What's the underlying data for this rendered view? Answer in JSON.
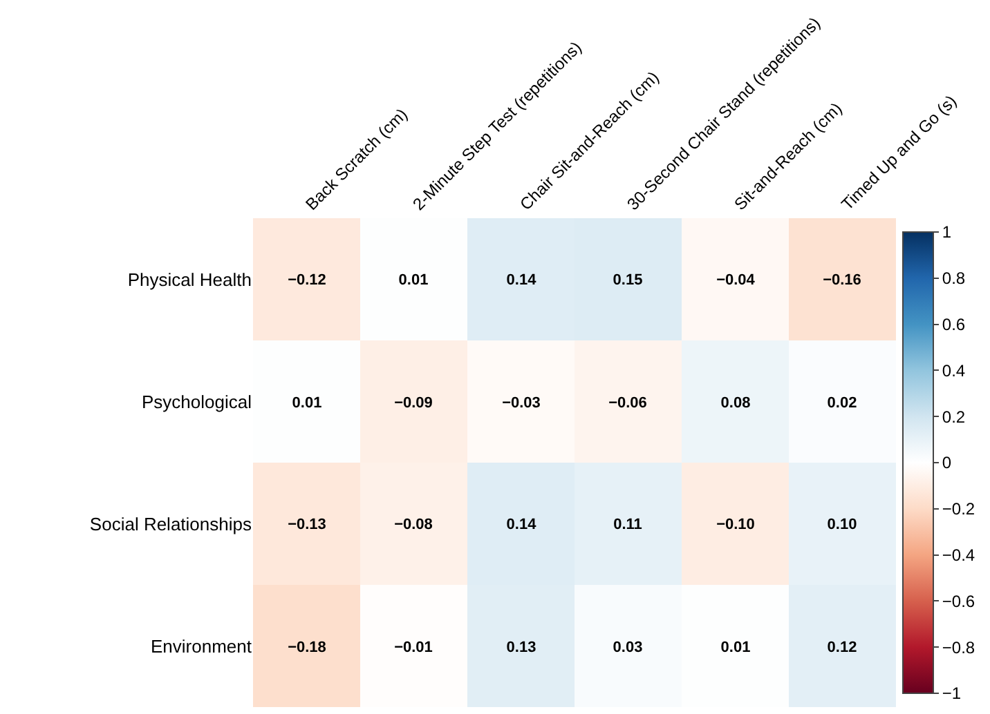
{
  "chart_data": {
    "type": "heatmap",
    "categories": [
      "Back Scratch (cm)",
      "2-Minute Step Test (repetitions)",
      "Chair Sit-and-Reach (cm)",
      "30-Second Chair Stand (repetitions)",
      "Sit-and-Reach (cm)",
      "Timed Up and Go (s)"
    ],
    "y_categories": [
      "Physical Health",
      "Psychological",
      "Social Relationships",
      "Environment"
    ],
    "cells": [
      [
        -0.12,
        0.01,
        0.14,
        0.15,
        -0.04,
        -0.16
      ],
      [
        0.01,
        -0.09,
        -0.03,
        -0.06,
        0.08,
        0.02
      ],
      [
        -0.13,
        -0.08,
        0.14,
        0.11,
        -0.1,
        0.1
      ],
      [
        -0.18,
        -0.01,
        0.13,
        0.03,
        0.01,
        0.12
      ]
    ],
    "cell_labels": [
      [
        "−0.12",
        "0.01",
        "0.14",
        "0.15",
        "−0.04",
        "−0.16"
      ],
      [
        "0.01",
        "−0.09",
        "−0.03",
        "−0.06",
        "0.08",
        "0.02"
      ],
      [
        "−0.13",
        "−0.08",
        "0.14",
        "0.11",
        "−0.10",
        "0.10"
      ],
      [
        "−0.18",
        "−0.01",
        "0.13",
        "0.03",
        "0.01",
        "0.12"
      ]
    ],
    "clim": [
      -1,
      1
    ],
    "cticks": [
      -1,
      -0.8,
      -0.6,
      -0.4,
      -0.2,
      0,
      0.2,
      0.4,
      0.6,
      0.8,
      1
    ]
  }
}
